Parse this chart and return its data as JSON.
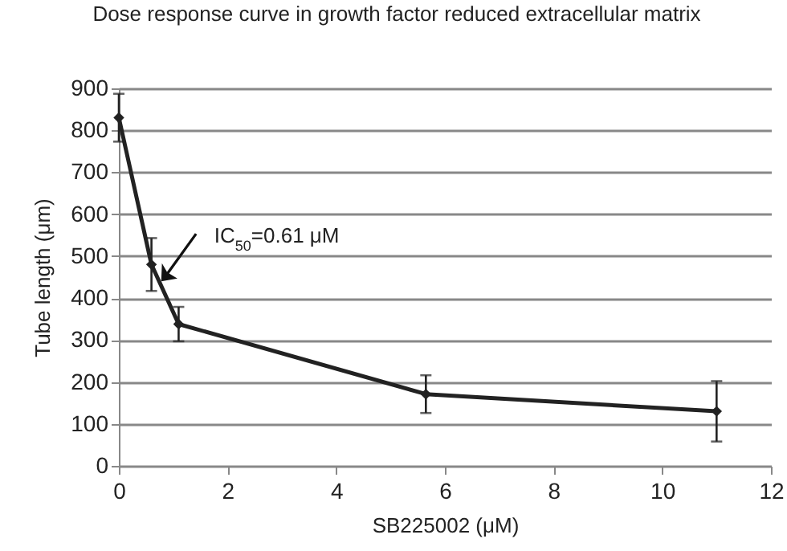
{
  "chart_data": {
    "type": "line",
    "title": "Dose response curve in growth factor reduced extracellular matrix",
    "xlabel": "SB225002 (μM)",
    "ylabel": "Tube length (μm)",
    "x": [
      0,
      0.6,
      1.1,
      5.65,
      11
    ],
    "series": [
      {
        "color": "#222222",
        "values": [
          830,
          480,
          338,
          171,
          130
        ],
        "errors": [
          57,
          63,
          41,
          45,
          72
        ]
      }
    ],
    "xlim": [
      0,
      12
    ],
    "xticks": [
      0,
      2,
      4,
      6,
      8,
      10,
      12
    ],
    "ylim": [
      0,
      900
    ],
    "yticks": [
      0,
      100,
      200,
      300,
      400,
      500,
      600,
      700,
      800,
      900
    ],
    "grid": "y",
    "marker": "diamond",
    "line_style": "solid",
    "annotations": [
      {
        "text": "IC$_{50}$=0.61 μM",
        "x": 0.78,
        "y": 440
      }
    ]
  }
}
